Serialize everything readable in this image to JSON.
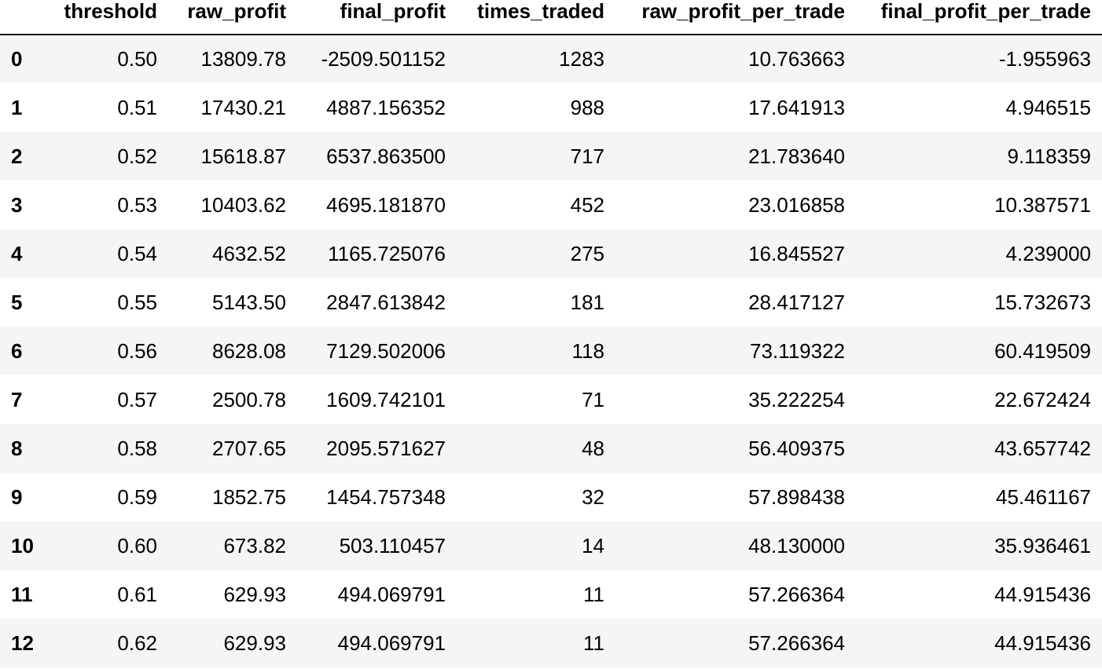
{
  "table": {
    "columns": [
      "threshold",
      "raw_profit",
      "final_profit",
      "times_traded",
      "raw_profit_per_trade",
      "final_profit_per_trade"
    ],
    "rows": [
      {
        "index": "0",
        "cells": [
          "0.50",
          "13809.78",
          "-2509.501152",
          "1283",
          "10.763663",
          "-1.955963"
        ]
      },
      {
        "index": "1",
        "cells": [
          "0.51",
          "17430.21",
          "4887.156352",
          "988",
          "17.641913",
          "4.946515"
        ]
      },
      {
        "index": "2",
        "cells": [
          "0.52",
          "15618.87",
          "6537.863500",
          "717",
          "21.783640",
          "9.118359"
        ]
      },
      {
        "index": "3",
        "cells": [
          "0.53",
          "10403.62",
          "4695.181870",
          "452",
          "23.016858",
          "10.387571"
        ]
      },
      {
        "index": "4",
        "cells": [
          "0.54",
          "4632.52",
          "1165.725076",
          "275",
          "16.845527",
          "4.239000"
        ]
      },
      {
        "index": "5",
        "cells": [
          "0.55",
          "5143.50",
          "2847.613842",
          "181",
          "28.417127",
          "15.732673"
        ]
      },
      {
        "index": "6",
        "cells": [
          "0.56",
          "8628.08",
          "7129.502006",
          "118",
          "73.119322",
          "60.419509"
        ]
      },
      {
        "index": "7",
        "cells": [
          "0.57",
          "2500.78",
          "1609.742101",
          "71",
          "35.222254",
          "22.672424"
        ]
      },
      {
        "index": "8",
        "cells": [
          "0.58",
          "2707.65",
          "2095.571627",
          "48",
          "56.409375",
          "43.657742"
        ]
      },
      {
        "index": "9",
        "cells": [
          "0.59",
          "1852.75",
          "1454.757348",
          "32",
          "57.898438",
          "45.461167"
        ]
      },
      {
        "index": "10",
        "cells": [
          "0.60",
          "673.82",
          "503.110457",
          "14",
          "48.130000",
          "35.936461"
        ]
      },
      {
        "index": "11",
        "cells": [
          "0.61",
          "629.93",
          "494.069791",
          "11",
          "57.266364",
          "44.915436"
        ]
      },
      {
        "index": "12",
        "cells": [
          "0.62",
          "629.93",
          "494.069791",
          "11",
          "57.266364",
          "44.915436"
        ]
      }
    ]
  }
}
